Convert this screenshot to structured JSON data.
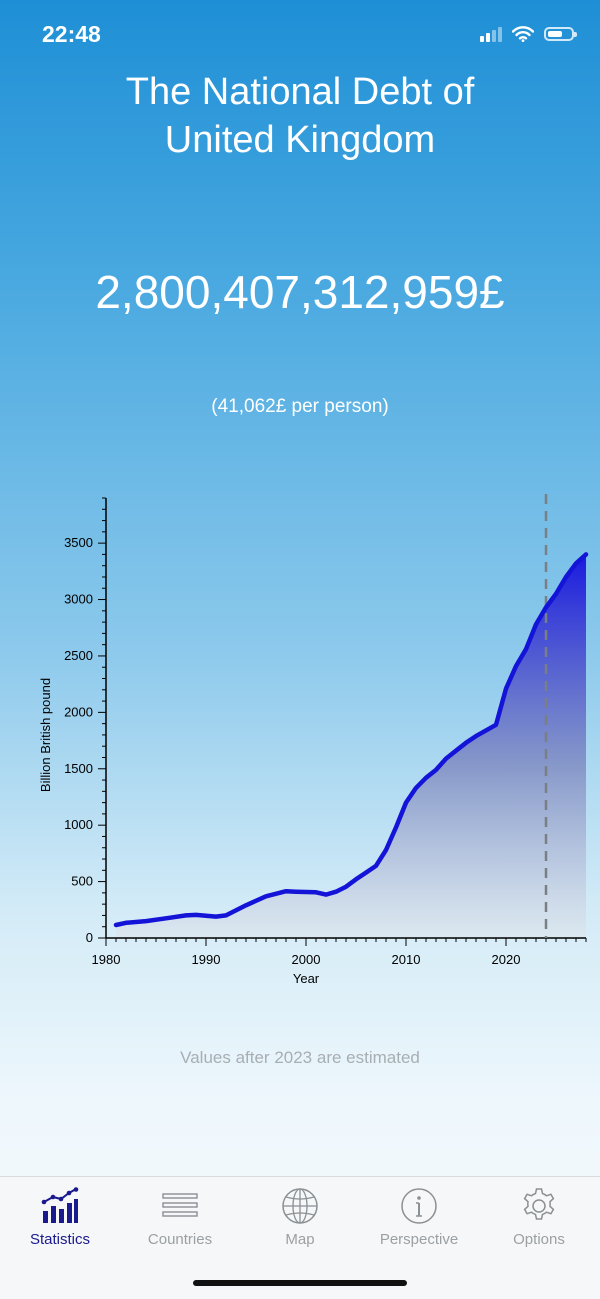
{
  "status_bar": {
    "time": "22:48"
  },
  "header": {
    "title_line1": "The National Debt of",
    "title_line2": "United Kingdom",
    "total_debt": "2,800,407,312,959£",
    "per_person": "(41,062£ per person)"
  },
  "chart_data": {
    "type": "area",
    "xlabel": "Year",
    "ylabel": "Billion British pound",
    "xlim": [
      1980,
      2028
    ],
    "ylim": [
      0,
      3900
    ],
    "x_ticks": [
      1980,
      1990,
      2000,
      2010,
      2020
    ],
    "y_ticks": [
      0,
      500,
      1000,
      1500,
      2000,
      2500,
      3000,
      3500
    ],
    "estimate_marker_year": 2024,
    "line_color": "#1414d8",
    "fill_color_top": "#1a1ae0",
    "series": [
      {
        "x": [
          1981,
          1982,
          1984,
          1986,
          1988,
          1989,
          1991,
          1992,
          1994,
          1996,
          1998,
          1999,
          2001,
          2002,
          2003,
          2004,
          2005,
          2006,
          2007,
          2008,
          2009,
          2010,
          2011,
          2012,
          2013,
          2014,
          2015,
          2016,
          2017,
          2018,
          2019,
          2020,
          2021,
          2022,
          2023,
          2024,
          2025,
          2026,
          2027,
          2028
        ],
        "y": [
          115,
          135,
          150,
          175,
          200,
          205,
          190,
          200,
          290,
          370,
          415,
          410,
          405,
          385,
          410,
          455,
          520,
          580,
          640,
          780,
          980,
          1200,
          1330,
          1420,
          1490,
          1590,
          1660,
          1730,
          1790,
          1840,
          1890,
          2210,
          2410,
          2560,
          2780,
          2930,
          3050,
          3200,
          3320,
          3400
        ]
      }
    ]
  },
  "note": "Values after 2023 are estimated",
  "tabs": [
    {
      "label": "Statistics",
      "icon": "bar-chart-icon",
      "active": true
    },
    {
      "label": "Countries",
      "icon": "list-icon",
      "active": false
    },
    {
      "label": "Map",
      "icon": "globe-icon",
      "active": false
    },
    {
      "label": "Perspective",
      "icon": "info-icon",
      "active": false
    },
    {
      "label": "Options",
      "icon": "gear-icon",
      "active": false
    }
  ]
}
